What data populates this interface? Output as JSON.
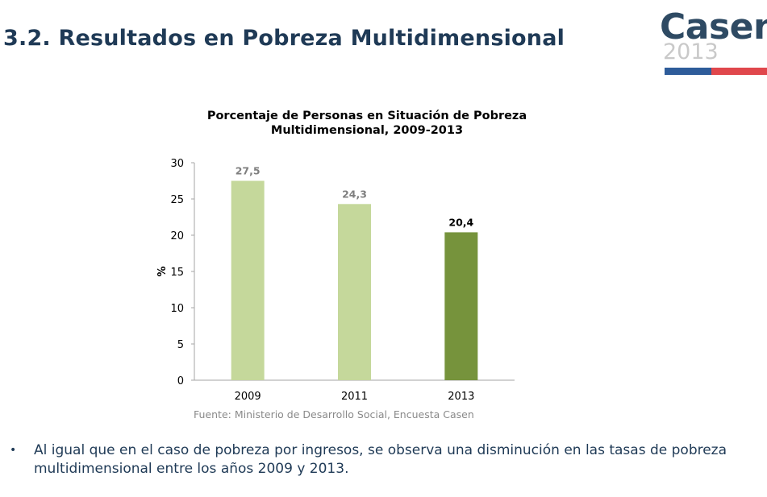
{
  "slide": {
    "title": "3.2. Resultados en Pobreza Multidimensional"
  },
  "logo": {
    "name": "Casen",
    "year": "2013",
    "colors": {
      "name": "#2e4a63",
      "year": "#c9c9c9",
      "bar_blue": "#2e5c9a",
      "bar_red": "#e0474c"
    }
  },
  "chart_data": {
    "type": "bar",
    "title": "Porcentaje de Personas en Situación de Pobreza Multidimensional, 2009-2013",
    "title_lines": [
      "Porcentaje de Personas en Situación de Pobreza",
      "Multidimensional, 2009-2013"
    ],
    "categories": [
      "2009",
      "2011",
      "2013"
    ],
    "values": [
      27.5,
      24.3,
      20.4
    ],
    "value_labels": [
      "27,5",
      "24,3",
      "20,4"
    ],
    "bar_colors": [
      "#c5d89b",
      "#c5d89b",
      "#76933c"
    ],
    "label_colors": [
      "#7f7f7f",
      "#7f7f7f",
      "#000000"
    ],
    "xlabel": "",
    "ylabel": "%",
    "ylim": [
      0,
      30
    ],
    "yticks": [
      0,
      5,
      10,
      15,
      20,
      25,
      30
    ],
    "grid": false
  },
  "source": {
    "text": "Fuente: Ministerio de Desarrollo Social, Encuesta Casen"
  },
  "bullets": [
    {
      "marker": "•",
      "text": "Al igual que en el caso de pobreza por ingresos, se observa una disminución en las tasas de pobreza multidimensional entre los años 2009 y 2013."
    }
  ]
}
